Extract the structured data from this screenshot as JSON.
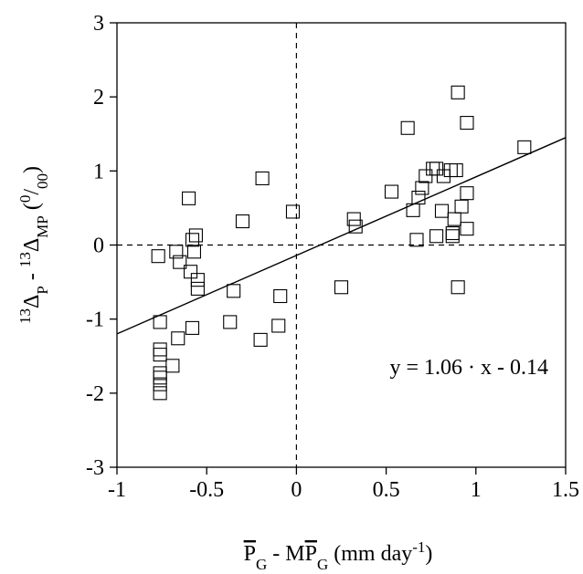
{
  "chart_data": {
    "type": "scatter",
    "xlabel_parts": [
      {
        "text": "P",
        "style": "overline"
      },
      {
        "text": "G",
        "style": "sub"
      },
      {
        "text": " - M",
        "style": "normal"
      },
      {
        "text": "P",
        "style": "overline"
      },
      {
        "text": "G",
        "style": "sub"
      },
      {
        "text": " (mm day",
        "style": "normal"
      },
      {
        "text": "-1",
        "style": "super"
      },
      {
        "text": ")",
        "style": "normal"
      }
    ],
    "ylabel_parts": [
      {
        "text": "13",
        "style": "super"
      },
      {
        "text": "Δ",
        "style": "normal"
      },
      {
        "text": "P",
        "style": "sub"
      },
      {
        "text": " - ",
        "style": "normal"
      },
      {
        "text": "13",
        "style": "super"
      },
      {
        "text": "Δ",
        "style": "normal"
      },
      {
        "text": "MP",
        "style": "sub"
      },
      {
        "text": " (",
        "style": "normal"
      },
      {
        "text": "0",
        "style": "super"
      },
      {
        "text": "/",
        "style": "normal"
      },
      {
        "text": "00",
        "style": "sub"
      },
      {
        "text": ")",
        "style": "normal"
      }
    ],
    "annotation": "y = 1.06 · x - 0.14",
    "fit_line": {
      "slope": 1.06,
      "intercept": -0.14
    },
    "reference_lines": {
      "x": 0,
      "y": 0
    },
    "x": [
      -0.6,
      -0.19,
      -0.3,
      -0.02,
      -0.58,
      -0.56,
      -0.67,
      -0.77,
      -0.65,
      -0.59,
      -0.57,
      -0.55,
      -0.55,
      -0.35,
      -0.09,
      -0.37,
      -0.76,
      -0.58,
      -0.1,
      -0.2,
      -0.66,
      -0.76,
      -0.76,
      -0.69,
      -0.76,
      -0.76,
      -0.76,
      -0.76,
      0.25,
      0.32,
      0.33,
      0.53,
      0.62,
      0.9,
      0.95,
      1.27,
      0.76,
      0.78,
      0.86,
      0.89,
      0.72,
      0.82,
      0.7,
      0.68,
      0.95,
      0.65,
      0.81,
      0.92,
      0.88,
      0.95,
      0.67,
      0.78,
      0.87,
      0.87,
      0.9
    ],
    "values": [
      0.63,
      0.9,
      0.32,
      0.45,
      0.07,
      0.13,
      -0.09,
      -0.15,
      -0.23,
      -0.36,
      -0.09,
      -0.47,
      -0.59,
      -0.62,
      -0.69,
      -1.04,
      -1.04,
      -1.12,
      -1.09,
      -1.28,
      -1.26,
      -1.41,
      -1.48,
      -1.63,
      -1.73,
      -1.88,
      -2.0,
      -1.79,
      -0.57,
      0.35,
      0.25,
      0.72,
      1.58,
      2.06,
      1.65,
      1.32,
      1.03,
      1.03,
      1.01,
      1.01,
      0.93,
      0.93,
      0.77,
      0.64,
      0.7,
      0.47,
      0.46,
      0.52,
      0.35,
      0.22,
      0.07,
      0.12,
      0.16,
      0.12,
      -0.57
    ],
    "color": "#000000",
    "xlim": [
      -1,
      1.5
    ],
    "xticks": [
      -1,
      -0.5,
      0,
      0.5,
      1,
      1.5
    ],
    "ylim": [
      -3,
      3
    ],
    "yticks": [
      -3,
      -2,
      -1,
      0,
      1,
      2,
      3
    ]
  }
}
